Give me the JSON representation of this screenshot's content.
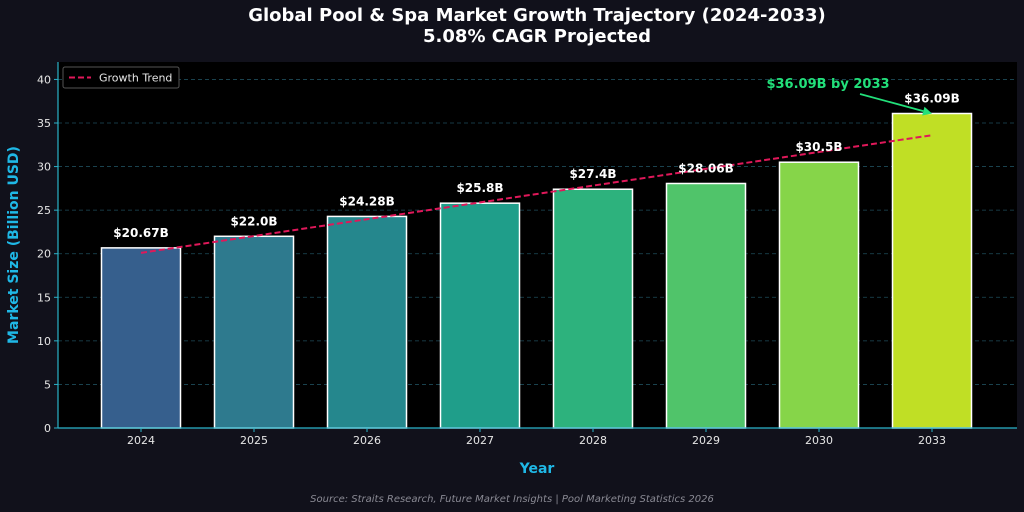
{
  "chart_data": {
    "type": "bar",
    "title": "Global Pool & Spa Market Growth Trajectory (2024-2033)",
    "subtitle": "5.08% CAGR Projected",
    "xlabel": "Year",
    "ylabel": "Market Size (Billion USD)",
    "categories": [
      "2024",
      "2025",
      "2026",
      "2027",
      "2028",
      "2029",
      "2030",
      "2033"
    ],
    "values": [
      20.67,
      22.0,
      24.28,
      25.8,
      27.4,
      28.06,
      30.5,
      36.09
    ],
    "value_labels": [
      "$20.67B",
      "$22.0B",
      "$24.28B",
      "$25.8B",
      "$27.4B",
      "$28.06B",
      "$30.5B",
      "$36.09B"
    ],
    "bar_colors": [
      "#365f8d",
      "#2e7a8e",
      "#25878d",
      "#1f9e8a",
      "#2db27d",
      "#50c46a",
      "#86d549",
      "#c0df25"
    ],
    "ylim": [
      0,
      42
    ],
    "yticks": [
      0,
      5,
      10,
      15,
      20,
      25,
      30,
      35,
      40
    ],
    "grid": true,
    "trend": {
      "name": "Growth Trend",
      "start": 20.1,
      "end": 33.6,
      "color": "#e0185a"
    },
    "legend": {
      "placement": "top-left"
    },
    "annotation": {
      "text": "$36.09B by 2033",
      "target_category": "2033",
      "target_value": 36.09,
      "color": "#22e07a"
    },
    "source": "Source: Straits Research, Future Market Insights | Pool Marketing Statistics 2026"
  },
  "colors": {
    "background": "#11111b",
    "plot_background": "#000000",
    "axis": "#2bb3c9",
    "grid": "#1e4b5a",
    "axis_label": "#1fb8e6"
  }
}
